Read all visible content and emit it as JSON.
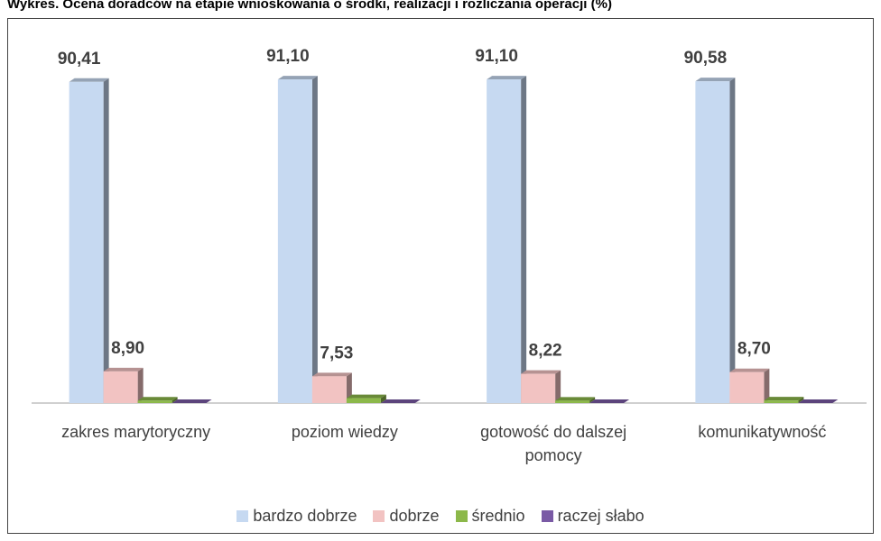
{
  "chart_data": {
    "type": "bar",
    "title": "Wykres. Ocena doradców na etapie wnioskowania o środki, realizacji i rozliczania operacji (%)",
    "categories": [
      "zakres marytoryczny",
      "poziom wiedzy",
      "gotowość do dalszej pomocy",
      "komunikatywność"
    ],
    "series": [
      {
        "name": "bardzo dobrze",
        "color": "#c6d9f1",
        "values": [
          90.41,
          91.1,
          91.1,
          90.58
        ],
        "value_labels": [
          "90,41",
          "91,10",
          "91,10",
          "90,58"
        ]
      },
      {
        "name": "dobrze",
        "color": "#f2c3c2",
        "values": [
          8.9,
          7.53,
          8.22,
          8.7
        ],
        "value_labels": [
          "8,90",
          "7,53",
          "8,22",
          "8,70"
        ]
      },
      {
        "name": "średnio",
        "color": "#8cb84a",
        "values": [
          0.69,
          1.37,
          0.68,
          0.72
        ]
      },
      {
        "name": "raczej słabo",
        "color": "#7a5aa5",
        "values": [
          0,
          0,
          0,
          0
        ]
      }
    ],
    "ylim": [
      0,
      100
    ],
    "legend": "bottom"
  }
}
